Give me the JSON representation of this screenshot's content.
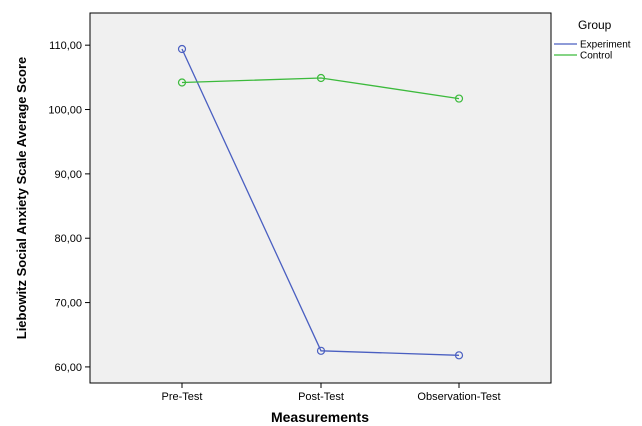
{
  "chart_data": {
    "type": "line",
    "categories": [
      "Pre-Test",
      "Post-Test",
      "Observation-Test"
    ],
    "series": [
      {
        "name": "Experiment",
        "values": [
          109.4,
          62.5,
          61.8
        ],
        "color": "#4a5fc1"
      },
      {
        "name": "Control",
        "values": [
          104.2,
          104.9,
          101.7
        ],
        "color": "#3cba3c"
      }
    ],
    "xlabel": "Measurements",
    "ylabel": "Liebowitz Social Anxiety Scale Average Score",
    "ylim": [
      57.5,
      115
    ],
    "yticks": [
      60,
      70,
      80,
      90,
      100,
      110
    ],
    "ytick_labels": [
      "60,00",
      "70,00",
      "80,00",
      "90,00",
      "100,00",
      "110,00"
    ],
    "legend": {
      "title": "Group",
      "position": "top-right"
    },
    "grid": false,
    "plot_background": "#f0f0f0",
    "markers": "open-circle"
  }
}
